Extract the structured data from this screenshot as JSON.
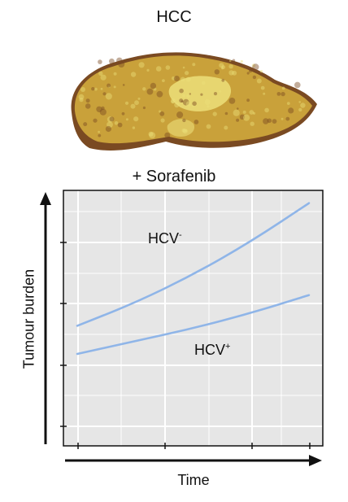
{
  "figure": {
    "title": "HCC",
    "treatment": "+ Sorafenib"
  },
  "colors": {
    "line": "#8fb5e8",
    "panel": "#e6e6e6",
    "grid": "#ffffff",
    "liver_base": "#c9a13a",
    "liver_dark": "#7a4a22",
    "liver_light": "#ecdf7a"
  },
  "chart_data": {
    "type": "line",
    "xlabel": "Time",
    "ylabel": "Tumour burden",
    "xlim": [
      0,
      1
    ],
    "ylim": [
      0,
      1
    ],
    "grid": true,
    "x": [
      0,
      0.25,
      0.5,
      0.75,
      1.0
    ],
    "series": [
      {
        "name": "HCV-",
        "values": [
          0.47,
          0.56,
          0.67,
          0.8,
          0.95
        ]
      },
      {
        "name": "HCV+",
        "values": [
          0.36,
          0.41,
          0.46,
          0.52,
          0.59
        ]
      }
    ]
  },
  "labels": {
    "hcv_neg_text": "HCV",
    "hcv_neg_sup": "-",
    "hcv_pos_text": "HCV",
    "hcv_pos_sup": "+"
  }
}
